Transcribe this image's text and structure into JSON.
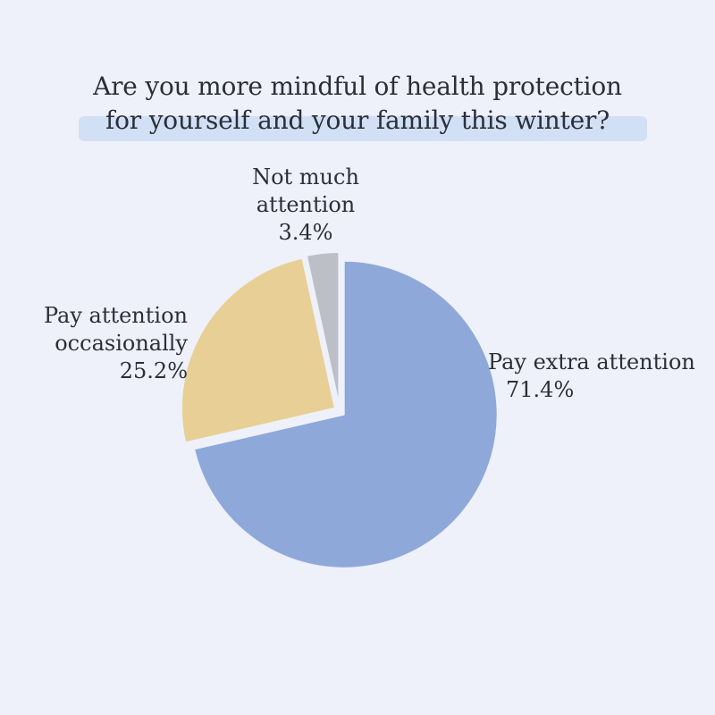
{
  "title_lines": [
    "Are you more mindful of health protection",
    "for yourself and your family this winter?"
  ],
  "colors": {
    "background": "#eef1f9",
    "highlight": "#d2e0f6",
    "extra": "#8ea8da",
    "occasional": "#e8cf95",
    "not_much": "#bcbfc6"
  },
  "chart_data": {
    "type": "pie",
    "title": "Are you more mindful of health protection for yourself and your family this winter?",
    "slices": [
      {
        "label_lines": [
          "Pay extra attention"
        ],
        "label": "Pay extra attention",
        "value": 71.4,
        "value_text": "71.4%",
        "color": "#8ea8da"
      },
      {
        "label_lines": [
          "Pay attention",
          "occasionally"
        ],
        "label": "Pay attention occasionally",
        "value": 25.2,
        "value_text": "25.2%",
        "color": "#e8cf95"
      },
      {
        "label_lines": [
          "Not much",
          "attention"
        ],
        "label": "Not much attention",
        "value": 3.4,
        "value_text": "3.4%",
        "color": "#bcbfc6"
      }
    ],
    "start_angle": "12 o'clock",
    "direction": "clockwise",
    "legend": "none (direct labels)"
  }
}
